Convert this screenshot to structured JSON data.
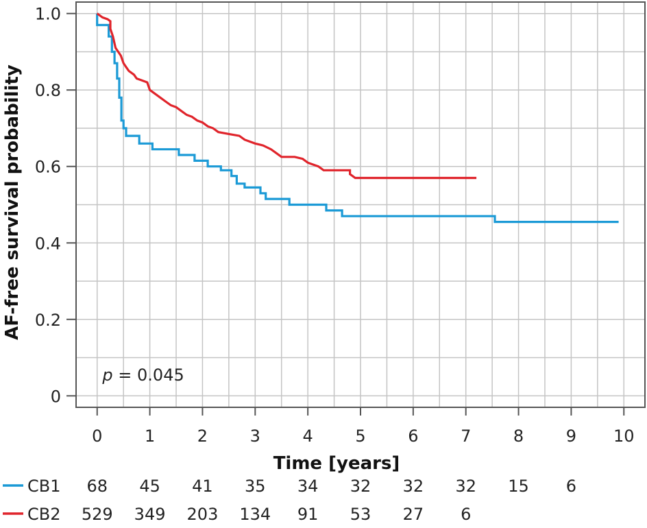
{
  "chart_data": {
    "type": "line",
    "title": "",
    "xlabel": "Time [years]",
    "ylabel": "AF-free survival probability",
    "xlim": [
      -0.4,
      10.4
    ],
    "ylim": [
      -0.03,
      1.03
    ],
    "x_ticks": [
      0,
      1,
      2,
      3,
      4,
      5,
      6,
      7,
      8,
      9,
      10
    ],
    "x_tick_labels": [
      "0",
      "1",
      "2",
      "3",
      "4",
      "5",
      "6",
      "7",
      "8",
      "9",
      "10"
    ],
    "y_ticks": [
      0,
      0.2,
      0.4,
      0.6,
      0.8,
      1.0
    ],
    "y_tick_labels": [
      "0",
      "0.2",
      "0.4",
      "0.6",
      "0.8",
      "1.0"
    ],
    "grid": true,
    "grid_step_x": 0.5,
    "grid_step_y": 0.1,
    "annotation": {
      "prefix": "p",
      "text": " = 0.045",
      "x": 0.1,
      "y": 0.04
    },
    "series": [
      {
        "name": "CB1",
        "color": "#1b9ad6",
        "step_points": [
          [
            0,
            1.0
          ],
          [
            0,
            0.97
          ],
          [
            0.22,
            0.97
          ],
          [
            0.22,
            0.94
          ],
          [
            0.28,
            0.94
          ],
          [
            0.28,
            0.9
          ],
          [
            0.33,
            0.9
          ],
          [
            0.33,
            0.87
          ],
          [
            0.38,
            0.87
          ],
          [
            0.38,
            0.83
          ],
          [
            0.42,
            0.83
          ],
          [
            0.42,
            0.78
          ],
          [
            0.46,
            0.78
          ],
          [
            0.46,
            0.72
          ],
          [
            0.5,
            0.72
          ],
          [
            0.5,
            0.7
          ],
          [
            0.55,
            0.7
          ],
          [
            0.55,
            0.68
          ],
          [
            0.8,
            0.68
          ],
          [
            0.8,
            0.66
          ],
          [
            1.05,
            0.66
          ],
          [
            1.05,
            0.645
          ],
          [
            1.55,
            0.645
          ],
          [
            1.55,
            0.63
          ],
          [
            1.85,
            0.63
          ],
          [
            1.85,
            0.615
          ],
          [
            2.1,
            0.615
          ],
          [
            2.1,
            0.6
          ],
          [
            2.35,
            0.6
          ],
          [
            2.35,
            0.59
          ],
          [
            2.55,
            0.59
          ],
          [
            2.55,
            0.575
          ],
          [
            2.65,
            0.575
          ],
          [
            2.65,
            0.555
          ],
          [
            2.8,
            0.555
          ],
          [
            2.8,
            0.545
          ],
          [
            3.1,
            0.545
          ],
          [
            3.1,
            0.53
          ],
          [
            3.2,
            0.53
          ],
          [
            3.2,
            0.515
          ],
          [
            3.65,
            0.515
          ],
          [
            3.65,
            0.5
          ],
          [
            4.35,
            0.5
          ],
          [
            4.35,
            0.485
          ],
          [
            4.65,
            0.485
          ],
          [
            4.65,
            0.47
          ],
          [
            7.55,
            0.47
          ],
          [
            7.55,
            0.455
          ],
          [
            9.9,
            0.455
          ]
        ]
      },
      {
        "name": "CB2",
        "color": "#e0242b",
        "step_points": [
          [
            0,
            1.0
          ],
          [
            0.05,
            0.995
          ],
          [
            0.1,
            0.99
          ],
          [
            0.2,
            0.985
          ],
          [
            0.25,
            0.98
          ],
          [
            0.25,
            0.96
          ],
          [
            0.3,
            0.94
          ],
          [
            0.35,
            0.91
          ],
          [
            0.4,
            0.9
          ],
          [
            0.45,
            0.89
          ],
          [
            0.5,
            0.87
          ],
          [
            0.55,
            0.86
          ],
          [
            0.6,
            0.85
          ],
          [
            0.7,
            0.84
          ],
          [
            0.75,
            0.83
          ],
          [
            0.85,
            0.825
          ],
          [
            0.95,
            0.82
          ],
          [
            1.0,
            0.8
          ],
          [
            1.1,
            0.79
          ],
          [
            1.2,
            0.78
          ],
          [
            1.3,
            0.77
          ],
          [
            1.4,
            0.76
          ],
          [
            1.5,
            0.755
          ],
          [
            1.6,
            0.745
          ],
          [
            1.7,
            0.735
          ],
          [
            1.8,
            0.73
          ],
          [
            1.9,
            0.72
          ],
          [
            2.0,
            0.715
          ],
          [
            2.1,
            0.705
          ],
          [
            2.2,
            0.7
          ],
          [
            2.3,
            0.69
          ],
          [
            2.5,
            0.685
          ],
          [
            2.7,
            0.68
          ],
          [
            2.8,
            0.67
          ],
          [
            3.0,
            0.66
          ],
          [
            3.15,
            0.655
          ],
          [
            3.3,
            0.645
          ],
          [
            3.4,
            0.635
          ],
          [
            3.5,
            0.625
          ],
          [
            3.75,
            0.625
          ],
          [
            3.9,
            0.62
          ],
          [
            4.0,
            0.61
          ],
          [
            4.1,
            0.605
          ],
          [
            4.2,
            0.6
          ],
          [
            4.3,
            0.59
          ],
          [
            4.8,
            0.59
          ],
          [
            4.8,
            0.58
          ],
          [
            4.9,
            0.57
          ],
          [
            7.2,
            0.57
          ]
        ]
      }
    ],
    "risk_table": {
      "rows": [
        {
          "name": "CB1",
          "color": "#1b9ad6",
          "values": [
            "68",
            "45",
            "41",
            "35",
            "34",
            "32",
            "32",
            "32",
            "15",
            "6"
          ]
        },
        {
          "name": "CB2",
          "color": "#e0242b",
          "values": [
            "529",
            "349",
            "203",
            "134",
            "91",
            "53",
            "27",
            "6"
          ]
        }
      ]
    }
  }
}
